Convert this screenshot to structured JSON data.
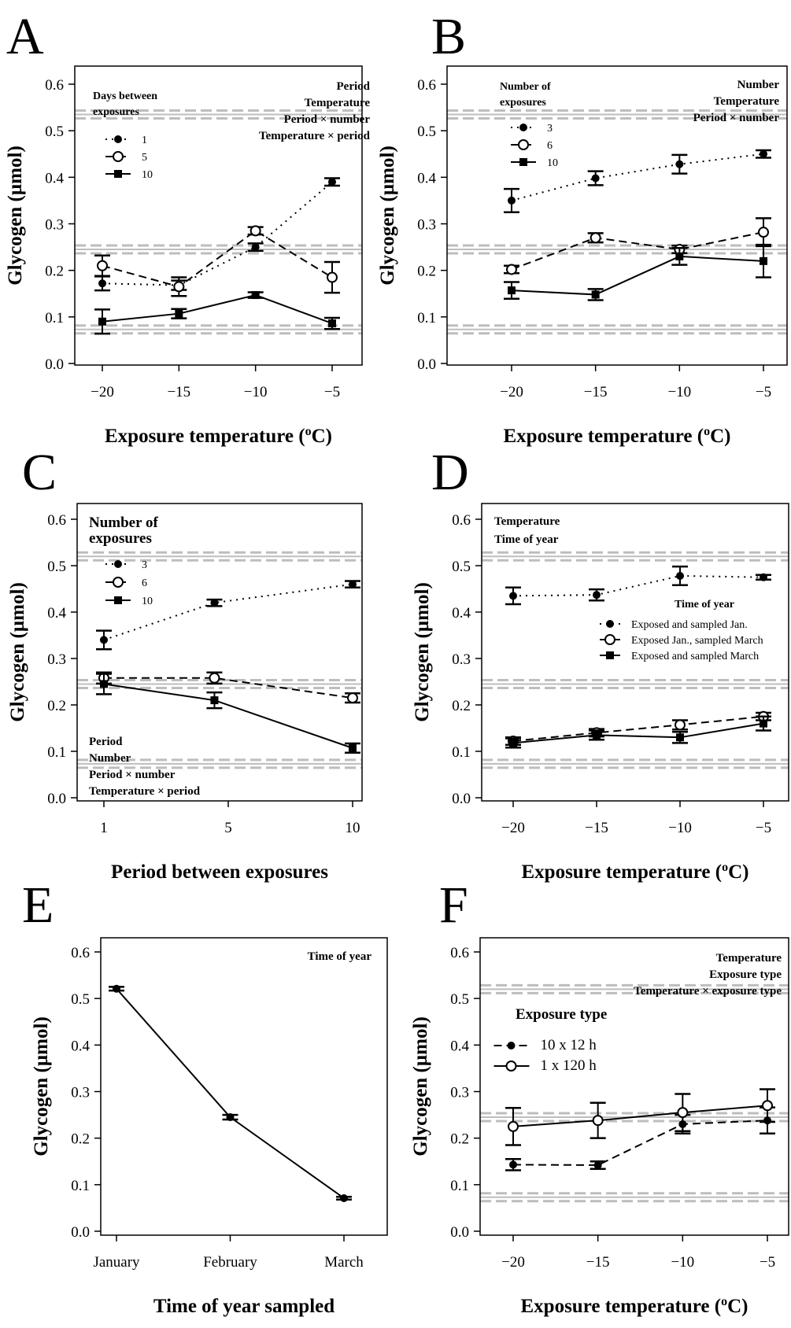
{
  "chart_data": [
    {
      "panel": "A",
      "type": "line",
      "x_title": "Exposure temperature (",
      "x_title_sup": "o",
      "x_title_end": "C)",
      "y_title": "Glycogen (µmol)",
      "x_ticks": [
        "−20",
        "−15",
        "−10",
        "−5"
      ],
      "x": [
        -20,
        -15,
        -10,
        -5
      ],
      "y_ticks": [
        "0.0",
        "0.1",
        "0.2",
        "0.3",
        "0.4",
        "0.5",
        "0.6"
      ],
      "ylim": [
        0,
        0.6
      ],
      "legend_title": [
        "Days between",
        "exposures"
      ],
      "annotations": [
        "Period",
        "Temperature",
        "Period × number",
        "Temperature × period"
      ],
      "reference_lines": [
        0.535,
        0.245,
        0.073
      ],
      "series": [
        {
          "name": "1",
          "style": "dotted",
          "marker": "filled-circle",
          "values": [
            0.172,
            0.168,
            0.25,
            0.39
          ],
          "errors": [
            0.015,
            0.01,
            0.008,
            0.008
          ]
        },
        {
          "name": "5",
          "style": "dashed",
          "marker": "open-circle",
          "values": [
            0.21,
            0.165,
            0.285,
            0.185
          ],
          "errors": [
            0.022,
            0.02,
            0.008,
            0.033
          ]
        },
        {
          "name": "10",
          "style": "solid",
          "marker": "filled-square",
          "values": [
            0.09,
            0.107,
            0.147,
            0.086
          ],
          "errors": [
            0.026,
            0.01,
            0.006,
            0.012
          ]
        }
      ]
    },
    {
      "panel": "B",
      "type": "line",
      "x_title": "Exposure temperature (",
      "x_title_sup": "o",
      "x_title_end": "C)",
      "y_title": "Glycogen (µmol)",
      "x_ticks": [
        "−20",
        "−15",
        "−10",
        "−5"
      ],
      "x": [
        -20,
        -15,
        -10,
        -5
      ],
      "y_ticks": [
        "0.0",
        "0.1",
        "0.2",
        "0.3",
        "0.4",
        "0.5",
        "0.6"
      ],
      "ylim": [
        0,
        0.6
      ],
      "legend_title": [
        "Number of",
        "exposures"
      ],
      "annotations": [
        "Number",
        "Temperature",
        "Period × number"
      ],
      "reference_lines": [
        0.535,
        0.245,
        0.073
      ],
      "series": [
        {
          "name": "3",
          "style": "dotted",
          "marker": "filled-circle",
          "values": [
            0.35,
            0.398,
            0.428,
            0.45
          ],
          "errors": [
            0.025,
            0.015,
            0.02,
            0.008
          ]
        },
        {
          "name": "6",
          "style": "dashed",
          "marker": "open-circle",
          "values": [
            0.202,
            0.27,
            0.245,
            0.282
          ],
          "errors": [
            0.008,
            0.01,
            0.008,
            0.03
          ]
        },
        {
          "name": "10",
          "style": "solid",
          "marker": "filled-square",
          "values": [
            0.157,
            0.148,
            0.23,
            0.22
          ],
          "errors": [
            0.018,
            0.012,
            0.018,
            0.035
          ]
        }
      ]
    },
    {
      "panel": "C",
      "type": "line",
      "x_title": "Period between exposures",
      "y_title": "Glycogen (µmol)",
      "x_ticks": [
        "1",
        "5",
        "10"
      ],
      "x": [
        1,
        5,
        10
      ],
      "y_ticks": [
        "0.0",
        "0.1",
        "0.2",
        "0.3",
        "0.4",
        "0.5",
        "0.6"
      ],
      "ylim": [
        0,
        0.6
      ],
      "legend_title": [
        "Number of",
        "exposures"
      ],
      "annotations": [
        "Period",
        "Number",
        "Period × number",
        "Temperature × period"
      ],
      "reference_lines": [
        0.52,
        0.245,
        0.073
      ],
      "series": [
        {
          "name": "3",
          "style": "dotted",
          "marker": "filled-circle",
          "values": [
            0.34,
            0.42,
            0.46
          ],
          "errors": [
            0.02,
            0.007,
            0.007
          ]
        },
        {
          "name": "6",
          "style": "dashed",
          "marker": "open-circle",
          "values": [
            0.258,
            0.258,
            0.215
          ],
          "errors": [
            0.012,
            0.012,
            0.01
          ]
        },
        {
          "name": "10",
          "style": "solid",
          "marker": "filled-square",
          "values": [
            0.245,
            0.21,
            0.107
          ],
          "errors": [
            0.022,
            0.017,
            0.01
          ]
        }
      ]
    },
    {
      "panel": "D",
      "type": "line",
      "x_title": "Exposure temperature (",
      "x_title_sup": "o",
      "x_title_end": "C)",
      "y_title": "Glycogen (µmol)",
      "x_ticks": [
        "−20",
        "−15",
        "−10",
        "−5"
      ],
      "x": [
        -20,
        -15,
        -10,
        -5
      ],
      "y_ticks": [
        "0.0",
        "0.1",
        "0.2",
        "0.3",
        "0.4",
        "0.5",
        "0.6"
      ],
      "ylim": [
        0,
        0.6
      ],
      "legend_title": [
        "Time of year"
      ],
      "annotations": [
        "Temperature",
        "Time of year"
      ],
      "reference_lines": [
        0.52,
        0.245,
        0.073
      ],
      "series": [
        {
          "name": "Exposed and sampled Jan.",
          "style": "dotted",
          "marker": "filled-circle",
          "values": [
            0.435,
            0.437,
            0.478,
            0.475
          ],
          "errors": [
            0.018,
            0.012,
            0.02,
            0.005
          ]
        },
        {
          "name": "Exposed Jan., sampled March",
          "style": "dashed",
          "marker": "open-circle",
          "values": [
            0.122,
            0.14,
            0.157,
            0.175
          ],
          "errors": [
            0.008,
            0.008,
            0.01,
            0.008
          ]
        },
        {
          "name": "Exposed and sampled March",
          "style": "solid",
          "marker": "filled-square",
          "values": [
            0.118,
            0.135,
            0.13,
            0.16
          ],
          "errors": [
            0.01,
            0.01,
            0.012,
            0.015
          ]
        }
      ]
    },
    {
      "panel": "E",
      "type": "line",
      "x_title": "Time of year sampled",
      "y_title": "Glycogen (µmol)",
      "x_ticks": [
        "January",
        "February",
        "March"
      ],
      "categories": [
        "January",
        "February",
        "March"
      ],
      "y_ticks": [
        "0.0",
        "0.1",
        "0.2",
        "0.3",
        "0.4",
        "0.5",
        "0.6"
      ],
      "ylim": [
        0,
        0.6
      ],
      "annotations": [
        "Time of year"
      ],
      "series": [
        {
          "style": "solid",
          "marker": "filled-circle",
          "values": [
            0.521,
            0.245,
            0.071
          ],
          "errors": [
            0.004,
            0.005,
            0.003
          ]
        }
      ]
    },
    {
      "panel": "F",
      "type": "line",
      "x_title": "Exposure temperature (",
      "x_title_sup": "o",
      "x_title_end": "C)",
      "y_title": "Glycogen (µmol)",
      "x_ticks": [
        "−20",
        "−15",
        "−10",
        "−5"
      ],
      "x": [
        -20,
        -15,
        -10,
        -5
      ],
      "y_ticks": [
        "0.0",
        "0.1",
        "0.2",
        "0.3",
        "0.4",
        "0.5",
        "0.6"
      ],
      "ylim": [
        0,
        0.6
      ],
      "legend_title": [
        "Exposure type"
      ],
      "annotations": [
        "Temperature",
        "Exposure type",
        "Temperature × exposure type"
      ],
      "reference_lines": [
        0.52,
        0.245,
        0.073
      ],
      "series": [
        {
          "name": "10 x 12 h",
          "style": "dashed",
          "marker": "filled-circle",
          "values": [
            0.143,
            0.142,
            0.23,
            0.238
          ],
          "errors": [
            0.012,
            0.008,
            0.02,
            0.028
          ]
        },
        {
          "name": "1 x 120 h",
          "style": "solid",
          "marker": "open-circle",
          "values": [
            0.225,
            0.238,
            0.255,
            0.27
          ],
          "errors": [
            0.04,
            0.038,
            0.04,
            0.035
          ]
        }
      ]
    }
  ]
}
